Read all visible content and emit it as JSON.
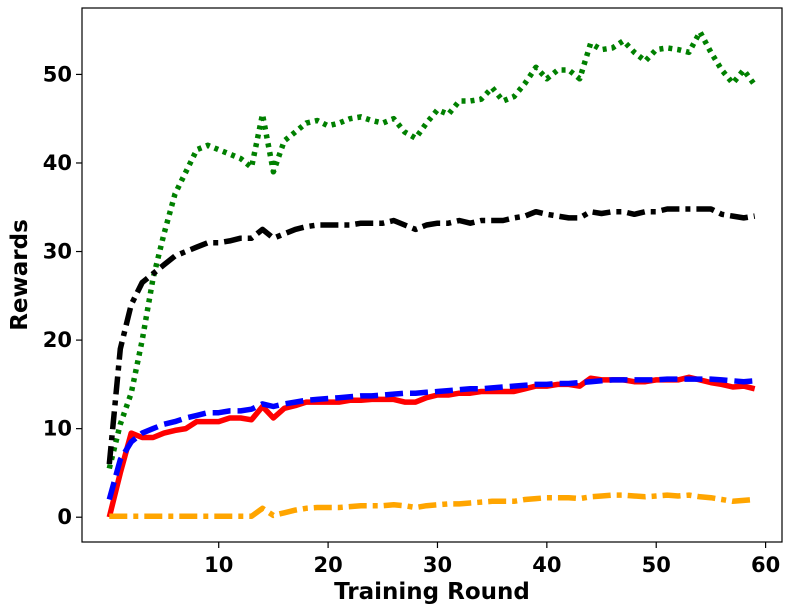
{
  "chart_data": {
    "type": "line",
    "title": "",
    "xlabel": "Training Round",
    "ylabel": "Rewards",
    "xlim": [
      -2.5,
      61.5
    ],
    "ylim": [
      -2.8,
      57.5
    ],
    "xticks": [
      10,
      20,
      30,
      40,
      50,
      60
    ],
    "yticks": [
      0,
      10,
      20,
      30,
      40,
      50
    ],
    "grid": false,
    "legend": "none",
    "x": [
      0,
      1,
      2,
      3,
      4,
      5,
      6,
      7,
      8,
      9,
      10,
      11,
      12,
      13,
      14,
      15,
      16,
      17,
      18,
      19,
      20,
      21,
      22,
      23,
      24,
      25,
      26,
      27,
      28,
      29,
      30,
      31,
      32,
      33,
      34,
      35,
      36,
      37,
      38,
      39,
      40,
      41,
      42,
      43,
      44,
      45,
      46,
      47,
      48,
      49,
      50,
      51,
      52,
      53,
      54,
      55,
      56,
      57,
      58,
      59
    ],
    "series": [
      {
        "color": "#008000",
        "style": "dotted",
        "values": [
          5.5,
          10.5,
          14,
          20,
          27,
          32,
          36.5,
          39,
          41.5,
          42,
          41.5,
          41,
          40.5,
          39.5,
          45.5,
          39,
          42.5,
          43.5,
          44.5,
          44.8,
          44.2,
          44.5,
          45,
          45.2,
          44.8,
          44.5,
          45,
          43.5,
          42.8,
          44.5,
          46,
          45.5,
          47,
          47,
          47.2,
          48.5,
          47,
          47.5,
          49,
          50.8,
          49.5,
          50.5,
          50.5,
          49.5,
          53.5,
          52.8,
          53,
          53.8,
          52.5,
          51.5,
          52.8,
          53,
          52.8,
          52.5,
          54.8,
          52.5,
          50.5,
          49,
          50.5,
          48.8
        ]
      },
      {
        "color": "#000000",
        "style": "dashdot",
        "values": [
          6,
          19,
          24,
          26.5,
          27.5,
          28.5,
          29.5,
          30,
          30.5,
          31,
          31,
          31.2,
          31.5,
          31.5,
          32.5,
          31.5,
          32,
          32.5,
          32.8,
          33,
          33,
          33,
          33,
          33.2,
          33.2,
          33.2,
          33.5,
          33,
          32.5,
          33,
          33.2,
          33.2,
          33.5,
          33.2,
          33.5,
          33.5,
          33.5,
          33.8,
          34,
          34.5,
          34.2,
          34,
          33.8,
          33.8,
          34.5,
          34.3,
          34.5,
          34.5,
          34.2,
          34.5,
          34.5,
          34.8,
          34.8,
          34.8,
          34.8,
          34.8,
          34.2,
          34,
          33.8,
          34
        ]
      },
      {
        "color": "#ff0000",
        "style": "solid",
        "values": [
          0,
          5,
          9.5,
          9,
          9,
          9.5,
          9.8,
          10,
          10.8,
          10.8,
          10.8,
          11.2,
          11.2,
          11,
          12.5,
          11.2,
          12.3,
          12.6,
          13,
          13,
          13,
          13,
          13.2,
          13.2,
          13.3,
          13.3,
          13.3,
          13,
          13,
          13.5,
          13.8,
          13.8,
          14,
          14,
          14.2,
          14.2,
          14.2,
          14.2,
          14.5,
          14.8,
          14.8,
          15,
          15,
          14.8,
          15.7,
          15.5,
          15.5,
          15.5,
          15.3,
          15.3,
          15.5,
          15.5,
          15.5,
          15.8,
          15.5,
          15.2,
          15,
          14.7,
          14.8,
          14.5
        ]
      },
      {
        "color": "#0000ff",
        "style": "dashed",
        "values": [
          2,
          6.5,
          8.5,
          9.5,
          10,
          10.5,
          10.8,
          11.2,
          11.5,
          11.8,
          11.8,
          12,
          12,
          12.2,
          12.8,
          12.5,
          12.8,
          13,
          13.2,
          13.3,
          13.4,
          13.5,
          13.6,
          13.7,
          13.7,
          13.8,
          13.9,
          14,
          14,
          14.1,
          14.2,
          14.3,
          14.4,
          14.5,
          14.5,
          14.6,
          14.7,
          14.8,
          14.9,
          15,
          15,
          15.1,
          15.1,
          15.2,
          15.3,
          15.4,
          15.5,
          15.5,
          15.5,
          15.5,
          15.5,
          15.6,
          15.6,
          15.6,
          15.6,
          15.6,
          15.5,
          15.4,
          15.3,
          15.4
        ]
      },
      {
        "color": "#ffa500",
        "style": "dashdot",
        "values": [
          0.1,
          0.1,
          0.1,
          0.1,
          0.1,
          0.1,
          0.1,
          0.1,
          0.1,
          0.1,
          0.1,
          0.1,
          0.1,
          0.1,
          1,
          0.2,
          0.5,
          0.8,
          1,
          1.1,
          1.1,
          1.1,
          1.2,
          1.3,
          1.3,
          1.3,
          1.4,
          1.3,
          1.1,
          1.3,
          1.4,
          1.5,
          1.5,
          1.6,
          1.7,
          1.8,
          1.8,
          1.8,
          2,
          2.1,
          2.2,
          2.2,
          2.2,
          2.1,
          2.3,
          2.4,
          2.5,
          2.5,
          2.4,
          2.3,
          2.4,
          2.5,
          2.4,
          2.5,
          2.3,
          2.2,
          2,
          1.8,
          1.9,
          2
        ]
      }
    ]
  }
}
